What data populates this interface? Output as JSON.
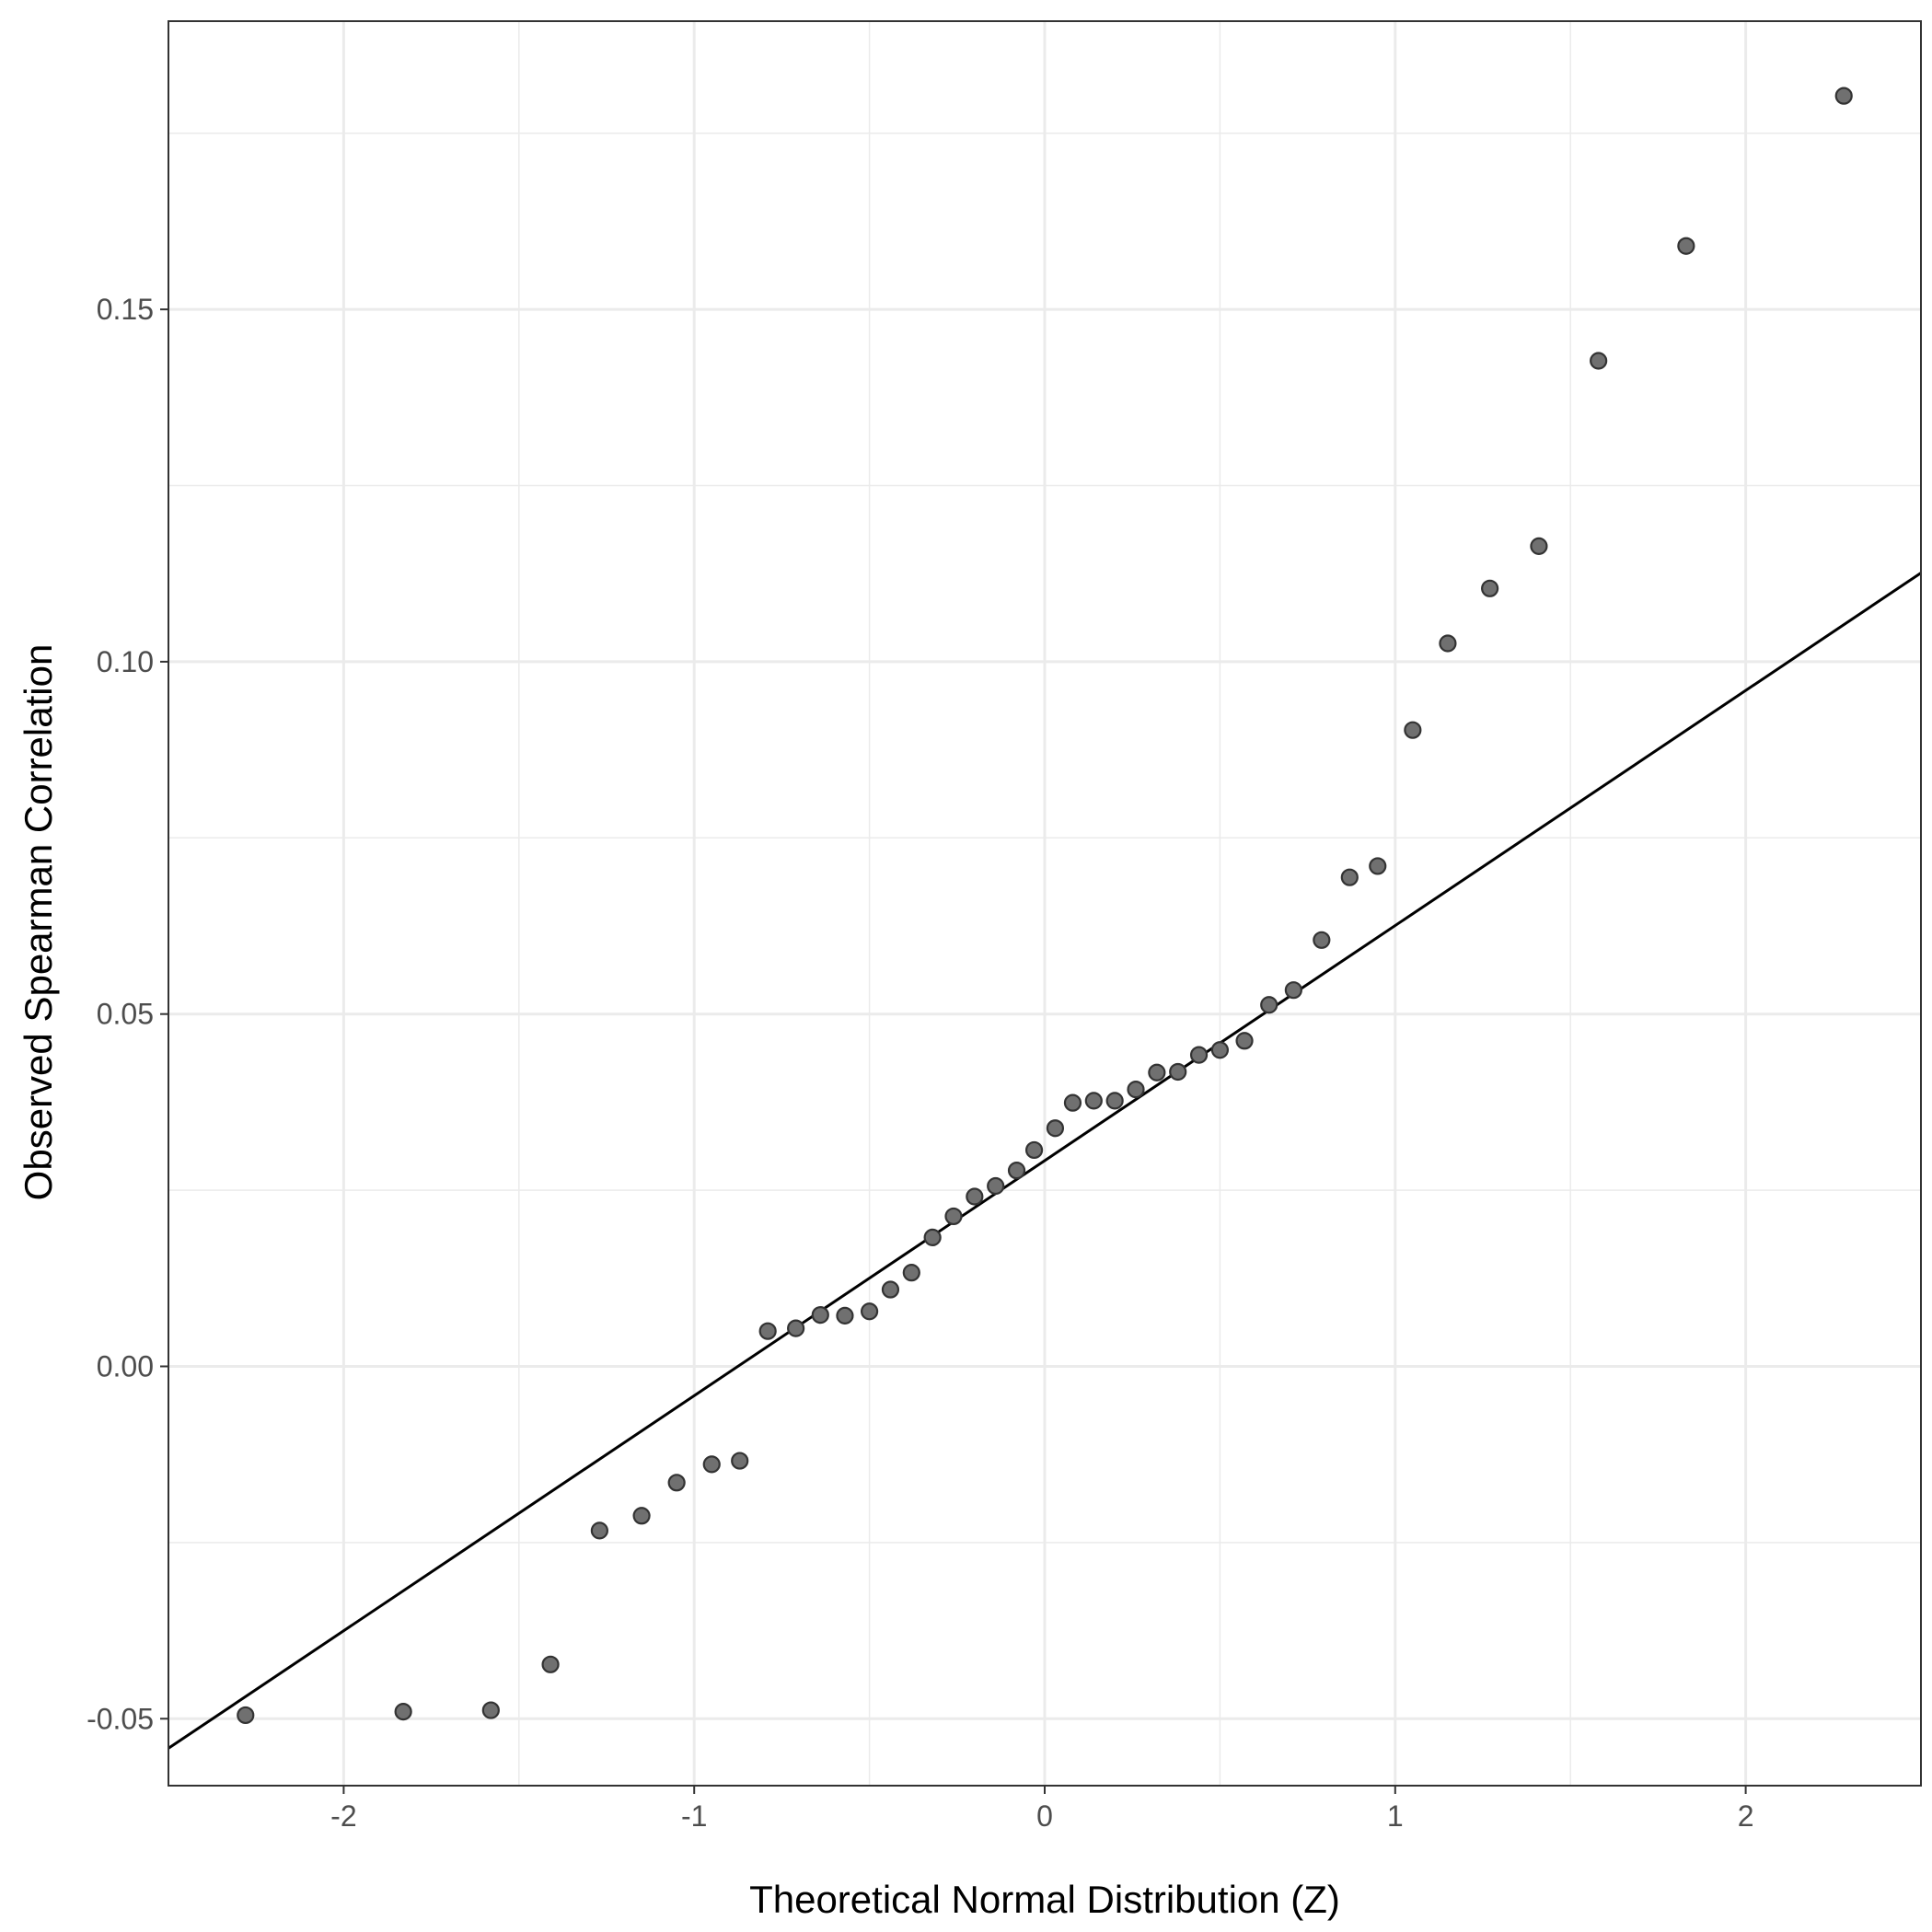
{
  "chart_data": {
    "type": "scatter",
    "title": "",
    "xlabel": "Theoretical Normal Distribution (Z)",
    "ylabel": "Observed Spearman Correlation",
    "xlim": [
      -2.5,
      2.5
    ],
    "ylim": [
      -0.0595,
      0.1909
    ],
    "x_ticks": [
      -2,
      -1,
      0,
      1,
      2
    ],
    "x_tick_labels": [
      "-2",
      "-1",
      "0",
      "1",
      "2"
    ],
    "y_ticks": [
      -0.05,
      0.0,
      0.05,
      0.1,
      0.15
    ],
    "y_tick_labels": [
      "-0.05",
      "0.00",
      "0.05",
      "0.10",
      "0.15"
    ],
    "x_minor_ticks": [
      -2.5,
      -1.5,
      -0.5,
      0.5,
      1.5,
      2.5
    ],
    "y_minor_ticks": [
      -0.025,
      0.025,
      0.075,
      0.125,
      0.175
    ],
    "grid": true,
    "legend": "none",
    "colors": {
      "point_fill": "#707070",
      "point_stroke": "#333333",
      "line": "#000000",
      "grid": "#ebebeb",
      "panel_border": "#333333",
      "tick_text": "#4d4d4d"
    },
    "reference_line": {
      "x": [
        -2.5,
        2.5
      ],
      "y": [
        -0.0542,
        0.1126
      ]
    },
    "points": {
      "x": [
        -2.28,
        -1.83,
        -1.58,
        -1.41,
        -1.27,
        -1.15,
        -1.05,
        -0.95,
        -0.87,
        -0.79,
        -0.71,
        -0.64,
        -0.57,
        -0.5,
        -0.44,
        -0.38,
        -0.32,
        -0.26,
        -0.2,
        -0.14,
        -0.08,
        -0.03,
        0.03,
        0.08,
        0.14,
        0.2,
        0.26,
        0.32,
        0.38,
        0.44,
        0.5,
        0.57,
        0.64,
        0.71,
        0.79,
        0.87,
        0.95,
        1.05,
        1.15,
        1.27,
        1.41,
        1.58,
        1.83,
        2.28
      ],
      "y": [
        -0.0495,
        -0.049,
        -0.0488,
        -0.0423,
        -0.0233,
        -0.0212,
        -0.0165,
        -0.0139,
        -0.0134,
        0.005,
        0.0054,
        0.0073,
        0.0072,
        0.0078,
        0.0109,
        0.0133,
        0.0183,
        0.0213,
        0.0241,
        0.0256,
        0.0278,
        0.0307,
        0.0338,
        0.0374,
        0.0377,
        0.0377,
        0.0393,
        0.0417,
        0.0418,
        0.0442,
        0.0449,
        0.0462,
        0.0513,
        0.0534,
        0.0605,
        0.0694,
        0.071,
        0.0903,
        0.1026,
        0.1104,
        0.1164,
        0.1427,
        0.159,
        0.1803
      ]
    }
  }
}
